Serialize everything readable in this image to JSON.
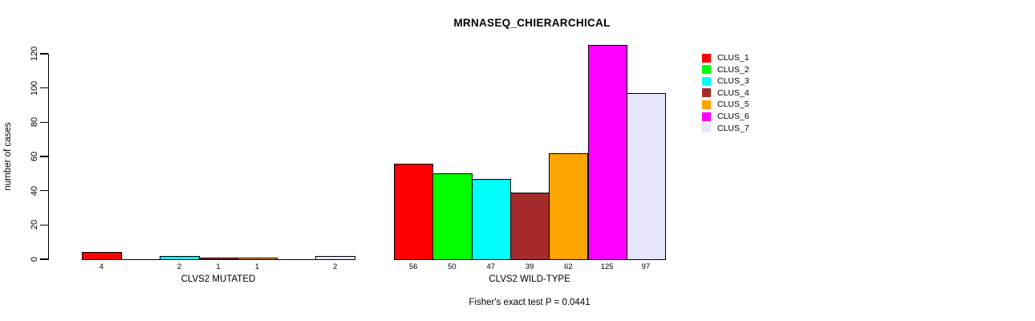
{
  "chart_data": {
    "type": "bar",
    "title": "MRNASEQ_CHIERARCHICAL",
    "ylabel": "number of cases",
    "xlabel": "",
    "ylim": [
      0,
      120
    ],
    "yticks": [
      0,
      20,
      40,
      60,
      80,
      100,
      120
    ],
    "grid": false,
    "footnote": "Fisher's exact test P = 0.0441",
    "series": [
      {
        "name": "CLUS_1",
        "color": "#FF0000",
        "values": [
          4,
          56
        ]
      },
      {
        "name": "CLUS_2",
        "color": "#00FF00",
        "values": [
          0,
          50
        ]
      },
      {
        "name": "CLUS_3",
        "color": "#00FFFF",
        "values": [
          2,
          47
        ]
      },
      {
        "name": "CLUS_4",
        "color": "#A52A2A",
        "values": [
          1,
          39
        ]
      },
      {
        "name": "CLUS_5",
        "color": "#FFA500",
        "values": [
          1,
          62
        ]
      },
      {
        "name": "CLUS_6",
        "color": "#FF00FF",
        "values": [
          0,
          125
        ]
      },
      {
        "name": "CLUS_7",
        "color": "#E6E6FA",
        "values": [
          2,
          97
        ]
      }
    ],
    "categories": [
      "CLVS2 MUTATED",
      "CLVS2 WILD-TYPE"
    ],
    "legend": {
      "position": "right",
      "entries": [
        "CLUS_1",
        "CLUS_2",
        "CLUS_3",
        "CLUS_4",
        "CLUS_5",
        "CLUS_6",
        "CLUS_7"
      ]
    }
  }
}
